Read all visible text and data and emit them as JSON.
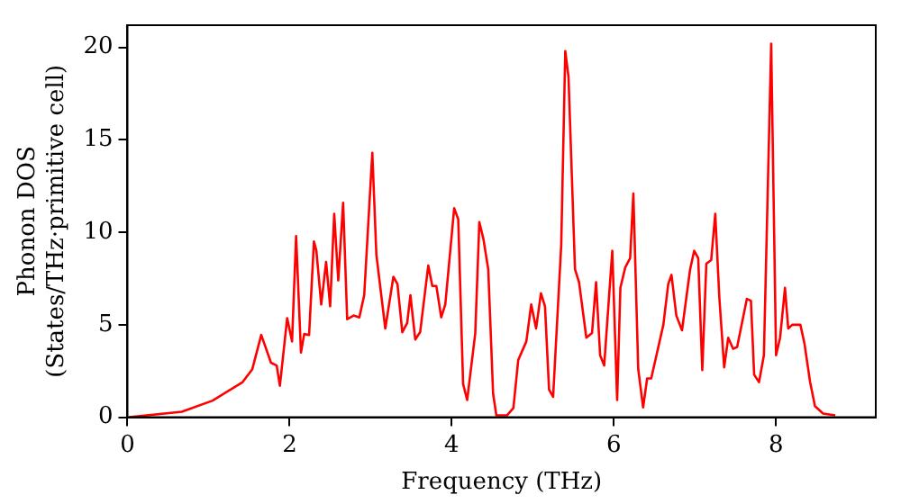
{
  "chart_data": {
    "type": "line",
    "xlabel": "Frequency (THz)",
    "ylabel": "Phonon DOS\n(States/THz·primitive cell)",
    "xlim": [
      0,
      9.23
    ],
    "ylim": [
      0,
      21.2
    ],
    "xticks": [
      0,
      2,
      4,
      6,
      8
    ],
    "yticks": [
      0,
      5,
      10,
      15,
      20
    ],
    "grid": false,
    "legend": false,
    "marker": "none",
    "line_style": "solid",
    "series": [
      {
        "color": "#ff0000",
        "x": [
          0.02,
          0.67,
          1.05,
          1.42,
          1.54,
          1.65,
          1.77,
          1.84,
          1.88,
          1.97,
          2.03,
          2.08,
          2.14,
          2.18,
          2.24,
          2.3,
          2.33,
          2.39,
          2.45,
          2.5,
          2.55,
          2.6,
          2.66,
          2.71,
          2.79,
          2.86,
          2.92,
          3.02,
          3.07,
          3.18,
          3.28,
          3.33,
          3.39,
          3.45,
          3.49,
          3.55,
          3.61,
          3.71,
          3.76,
          3.81,
          3.87,
          3.92,
          4.03,
          4.08,
          4.14,
          4.19,
          4.29,
          4.34,
          4.39,
          4.45,
          4.51,
          4.55,
          4.68,
          4.76,
          4.82,
          4.87,
          4.92,
          4.98,
          5.04,
          5.1,
          5.15,
          5.2,
          5.25,
          5.35,
          5.4,
          5.44,
          5.52,
          5.57,
          5.66,
          5.73,
          5.78,
          5.83,
          5.88,
          5.98,
          6.04,
          6.08,
          6.14,
          6.2,
          6.24,
          6.3,
          6.36,
          6.41,
          6.46,
          6.61,
          6.67,
          6.71,
          6.77,
          6.84,
          6.94,
          6.99,
          7.04,
          7.09,
          7.14,
          7.2,
          7.25,
          7.3,
          7.36,
          7.41,
          7.47,
          7.52,
          7.64,
          7.69,
          7.73,
          7.79,
          7.85,
          7.94,
          8.0,
          8.05,
          8.11,
          8.15,
          8.2,
          8.3,
          8.35,
          8.42,
          8.48,
          8.58,
          8.73
        ],
        "values": [
          0,
          0.3,
          0.9,
          1.9,
          2.6,
          4.45,
          2.95,
          2.8,
          1.7,
          5.36,
          4.1,
          9.8,
          3.5,
          4.5,
          4.45,
          9.5,
          9.0,
          6.1,
          8.4,
          6.0,
          11.0,
          7.4,
          11.6,
          5.3,
          5.5,
          5.4,
          6.6,
          14.3,
          8.8,
          4.8,
          7.6,
          7.2,
          4.6,
          5.1,
          6.6,
          4.2,
          4.6,
          8.2,
          7.1,
          7.1,
          5.4,
          6.1,
          11.3,
          10.7,
          1.8,
          0.93,
          4.55,
          10.55,
          9.65,
          8.0,
          1.27,
          0.1,
          0.1,
          0.5,
          3.1,
          3.6,
          4.1,
          6.1,
          4.8,
          6.7,
          6.0,
          1.5,
          1.1,
          9.3,
          19.8,
          18.4,
          8.0,
          7.3,
          4.3,
          4.55,
          7.3,
          3.35,
          2.8,
          9.0,
          0.93,
          7.0,
          8.1,
          8.6,
          12.1,
          2.6,
          0.53,
          2.1,
          2.1,
          5.0,
          7.2,
          7.7,
          5.5,
          4.7,
          8.0,
          9.0,
          8.6,
          2.55,
          8.3,
          8.5,
          11.0,
          6.5,
          2.7,
          4.3,
          3.7,
          3.8,
          6.4,
          6.3,
          2.3,
          1.9,
          3.35,
          20.2,
          3.35,
          4.3,
          7.0,
          4.8,
          5.0,
          5.0,
          4.0,
          1.9,
          0.6,
          0.2,
          0.1
        ]
      }
    ]
  }
}
